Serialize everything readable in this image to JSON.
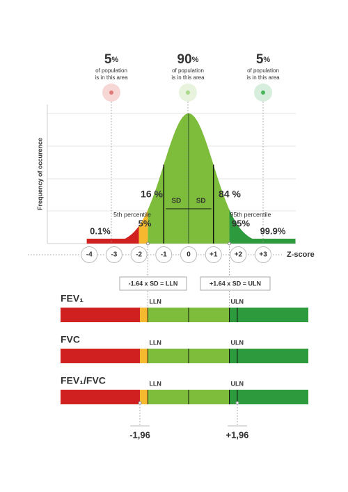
{
  "markers": [
    {
      "number": "5",
      "unit": "%",
      "line1": "of population",
      "line2": "is in this area"
    },
    {
      "number": "90",
      "unit": "%",
      "line1": "of population",
      "line2": "is in this area"
    },
    {
      "number": "5",
      "unit": "%",
      "line1": "of population",
      "line2": "is in this area"
    }
  ],
  "y_axis_label": "Frequency of occurence",
  "sd_label": "SD",
  "curve_labels": [
    "16 %",
    "84 %",
    "5th percentile",
    "5%",
    "95th percentile",
    "95%",
    "0.1%",
    "99.9%"
  ],
  "z_axis": {
    "ticks": [
      "-4",
      "-3",
      "-2",
      "-1",
      "0",
      "+1",
      "+2",
      "+3"
    ],
    "label": "Z-score"
  },
  "formulas": [
    "-1.64 x SD = LLN",
    "+1.64 x SD = ULN"
  ],
  "bars": [
    {
      "name": "FEV₁",
      "lln": "LLN",
      "uln": "ULN"
    },
    {
      "name": "FVC",
      "lln": "LLN",
      "uln": "ULN"
    },
    {
      "name": "FEV₁/FVC",
      "lln": "LLN",
      "uln": "ULN"
    }
  ],
  "bottom_labels": [
    "-1,96",
    "+1,96"
  ]
}
